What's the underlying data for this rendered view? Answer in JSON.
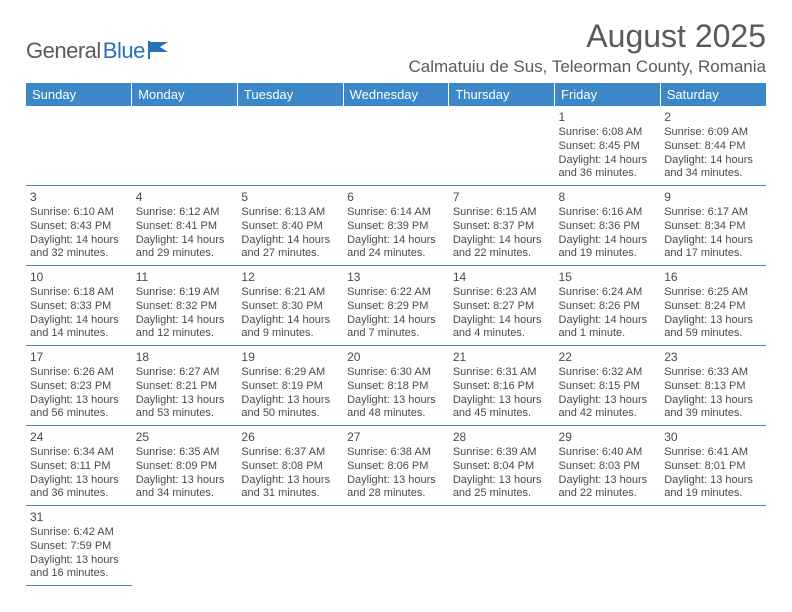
{
  "brand": {
    "text1": "General",
    "text2": "Blue"
  },
  "title": "August 2025",
  "location": "Calmatuiu de Sus, Teleorman County, Romania",
  "colors": {
    "headerBg": "#3b87c8",
    "headerFg": "#ffffff",
    "textColor": "#4a4a4a",
    "ruleColor": "#3b87c8",
    "logoBlue": "#2a70b8"
  },
  "weekdays": [
    "Sunday",
    "Monday",
    "Tuesday",
    "Wednesday",
    "Thursday",
    "Friday",
    "Saturday"
  ],
  "layout": {
    "firstDayColumn": 5,
    "daysInMonth": 31,
    "cellFontSize": 11,
    "dayFontSize": 12
  },
  "days": {
    "1": {
      "sunrise": "6:08 AM",
      "sunset": "8:45 PM",
      "daylight": "14 hours and 36 minutes."
    },
    "2": {
      "sunrise": "6:09 AM",
      "sunset": "8:44 PM",
      "daylight": "14 hours and 34 minutes."
    },
    "3": {
      "sunrise": "6:10 AM",
      "sunset": "8:43 PM",
      "daylight": "14 hours and 32 minutes."
    },
    "4": {
      "sunrise": "6:12 AM",
      "sunset": "8:41 PM",
      "daylight": "14 hours and 29 minutes."
    },
    "5": {
      "sunrise": "6:13 AM",
      "sunset": "8:40 PM",
      "daylight": "14 hours and 27 minutes."
    },
    "6": {
      "sunrise": "6:14 AM",
      "sunset": "8:39 PM",
      "daylight": "14 hours and 24 minutes."
    },
    "7": {
      "sunrise": "6:15 AM",
      "sunset": "8:37 PM",
      "daylight": "14 hours and 22 minutes."
    },
    "8": {
      "sunrise": "6:16 AM",
      "sunset": "8:36 PM",
      "daylight": "14 hours and 19 minutes."
    },
    "9": {
      "sunrise": "6:17 AM",
      "sunset": "8:34 PM",
      "daylight": "14 hours and 17 minutes."
    },
    "10": {
      "sunrise": "6:18 AM",
      "sunset": "8:33 PM",
      "daylight": "14 hours and 14 minutes."
    },
    "11": {
      "sunrise": "6:19 AM",
      "sunset": "8:32 PM",
      "daylight": "14 hours and 12 minutes."
    },
    "12": {
      "sunrise": "6:21 AM",
      "sunset": "8:30 PM",
      "daylight": "14 hours and 9 minutes."
    },
    "13": {
      "sunrise": "6:22 AM",
      "sunset": "8:29 PM",
      "daylight": "14 hours and 7 minutes."
    },
    "14": {
      "sunrise": "6:23 AM",
      "sunset": "8:27 PM",
      "daylight": "14 hours and 4 minutes."
    },
    "15": {
      "sunrise": "6:24 AM",
      "sunset": "8:26 PM",
      "daylight": "14 hours and 1 minute."
    },
    "16": {
      "sunrise": "6:25 AM",
      "sunset": "8:24 PM",
      "daylight": "13 hours and 59 minutes."
    },
    "17": {
      "sunrise": "6:26 AM",
      "sunset": "8:23 PM",
      "daylight": "13 hours and 56 minutes."
    },
    "18": {
      "sunrise": "6:27 AM",
      "sunset": "8:21 PM",
      "daylight": "13 hours and 53 minutes."
    },
    "19": {
      "sunrise": "6:29 AM",
      "sunset": "8:19 PM",
      "daylight": "13 hours and 50 minutes."
    },
    "20": {
      "sunrise": "6:30 AM",
      "sunset": "8:18 PM",
      "daylight": "13 hours and 48 minutes."
    },
    "21": {
      "sunrise": "6:31 AM",
      "sunset": "8:16 PM",
      "daylight": "13 hours and 45 minutes."
    },
    "22": {
      "sunrise": "6:32 AM",
      "sunset": "8:15 PM",
      "daylight": "13 hours and 42 minutes."
    },
    "23": {
      "sunrise": "6:33 AM",
      "sunset": "8:13 PM",
      "daylight": "13 hours and 39 minutes."
    },
    "24": {
      "sunrise": "6:34 AM",
      "sunset": "8:11 PM",
      "daylight": "13 hours and 36 minutes."
    },
    "25": {
      "sunrise": "6:35 AM",
      "sunset": "8:09 PM",
      "daylight": "13 hours and 34 minutes."
    },
    "26": {
      "sunrise": "6:37 AM",
      "sunset": "8:08 PM",
      "daylight": "13 hours and 31 minutes."
    },
    "27": {
      "sunrise": "6:38 AM",
      "sunset": "8:06 PM",
      "daylight": "13 hours and 28 minutes."
    },
    "28": {
      "sunrise": "6:39 AM",
      "sunset": "8:04 PM",
      "daylight": "13 hours and 25 minutes."
    },
    "29": {
      "sunrise": "6:40 AM",
      "sunset": "8:03 PM",
      "daylight": "13 hours and 22 minutes."
    },
    "30": {
      "sunrise": "6:41 AM",
      "sunset": "8:01 PM",
      "daylight": "13 hours and 19 minutes."
    },
    "31": {
      "sunrise": "6:42 AM",
      "sunset": "7:59 PM",
      "daylight": "13 hours and 16 minutes."
    }
  },
  "labels": {
    "sunrise": "Sunrise:",
    "sunset": "Sunset:",
    "daylight": "Daylight:"
  }
}
